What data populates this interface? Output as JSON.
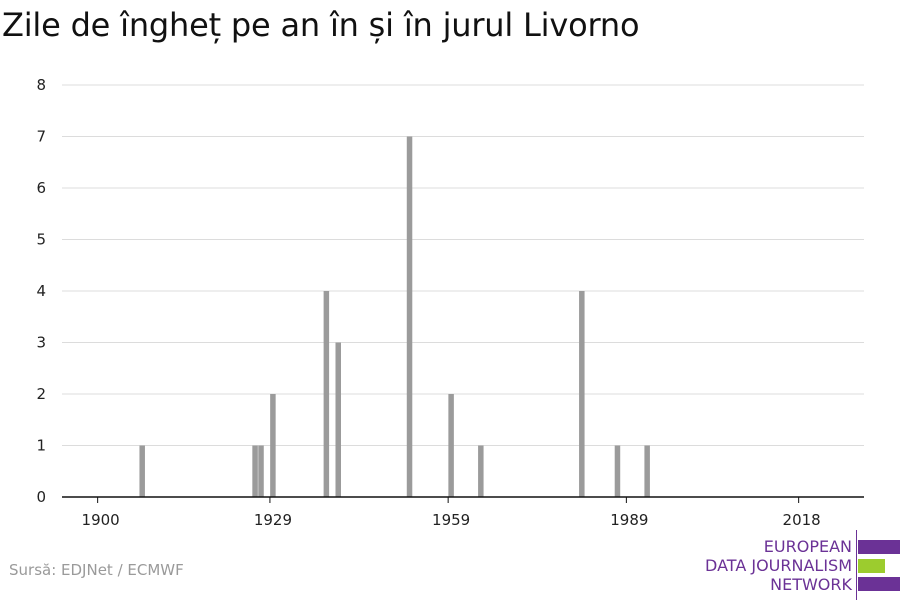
{
  "title": "Zile de îngheț pe an în și în jurul Livorno",
  "source": "Sursă: EDJNet / ECMWF",
  "logo": {
    "line1": "EUROPEAN",
    "line2": "DATA JOURNALISM",
    "line3": "NETWORK",
    "purple": "#6b3296",
    "green": "#9ccc2e"
  },
  "chart_data": {
    "type": "bar",
    "title": "Zile de îngheț pe an în și în jurul Livorno",
    "xlabel": "",
    "ylabel": "",
    "xlim": [
      1894,
      2029
    ],
    "ylim": [
      0,
      8
    ],
    "x_ticks": [
      1900,
      1929,
      1959,
      1989,
      2018
    ],
    "y_ticks": [
      0,
      1,
      2,
      3,
      4,
      5,
      6,
      7,
      8
    ],
    "grid": true,
    "bar_color": "#9b9b9b",
    "x": [
      1907,
      1926,
      1927,
      1929,
      1938,
      1940,
      1952,
      1959,
      1964,
      1981,
      1987,
      1992
    ],
    "values": [
      1,
      1,
      1,
      2,
      4,
      3,
      7,
      2,
      1,
      4,
      1,
      1
    ]
  }
}
